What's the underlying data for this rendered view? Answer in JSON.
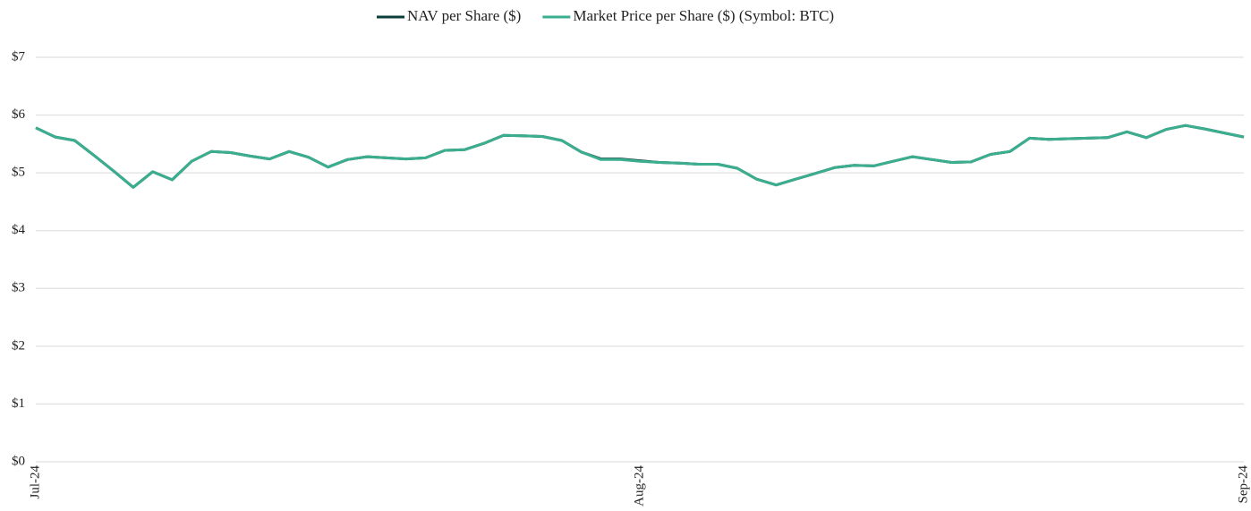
{
  "chart_data": {
    "type": "line",
    "categories": [
      "Jul-24",
      null,
      null,
      null,
      null,
      null,
      null,
      null,
      null,
      null,
      null,
      null,
      null,
      null,
      null,
      null,
      null,
      null,
      null,
      null,
      null,
      null,
      null,
      null,
      null,
      null,
      null,
      null,
      null,
      null,
      null,
      "Aug-24",
      null,
      null,
      null,
      null,
      null,
      null,
      null,
      null,
      null,
      null,
      null,
      null,
      null,
      null,
      null,
      null,
      null,
      null,
      null,
      null,
      null,
      null,
      null,
      null,
      null,
      null,
      null,
      null,
      null,
      null,
      "Sep-24"
    ],
    "series": [
      {
        "name": "NAV per Share ($)",
        "color": "#0b3d3a",
        "values": [
          5.78,
          5.62,
          5.56,
          5.3,
          5.03,
          4.75,
          5.02,
          4.88,
          5.2,
          5.37,
          5.35,
          5.29,
          5.24,
          5.37,
          5.27,
          5.1,
          5.23,
          5.28,
          5.26,
          5.24,
          5.26,
          5.39,
          5.4,
          5.51,
          5.65,
          5.64,
          5.63,
          5.56,
          5.36,
          5.24,
          5.24,
          5.21,
          5.18,
          5.17,
          5.15,
          5.15,
          5.08,
          4.89,
          4.79,
          4.89,
          4.99,
          5.09,
          5.13,
          5.12,
          5.2,
          5.28,
          5.23,
          5.18,
          5.19,
          5.32,
          5.37,
          5.6,
          5.58,
          5.59,
          5.6,
          5.61,
          5.71,
          5.61,
          5.75,
          5.82,
          5.76,
          5.69,
          5.62
        ]
      },
      {
        "name": "Market Price per Share ($) (Symbol: BTC)",
        "color": "#3aae8f",
        "values": [
          5.78,
          5.62,
          5.56,
          5.3,
          5.03,
          4.75,
          5.02,
          4.88,
          5.2,
          5.37,
          5.35,
          5.29,
          5.24,
          5.37,
          5.27,
          5.1,
          5.23,
          5.28,
          5.26,
          5.24,
          5.26,
          5.39,
          5.4,
          5.51,
          5.65,
          5.64,
          5.63,
          5.56,
          5.36,
          5.23,
          5.23,
          5.2,
          5.18,
          5.17,
          5.15,
          5.15,
          5.08,
          4.89,
          4.79,
          4.89,
          4.99,
          5.09,
          5.13,
          5.12,
          5.2,
          5.28,
          5.23,
          5.18,
          5.19,
          5.32,
          5.37,
          5.6,
          5.58,
          5.59,
          5.6,
          5.61,
          5.71,
          5.61,
          5.75,
          5.82,
          5.76,
          5.69,
          5.62
        ]
      }
    ],
    "ylim": [
      0,
      7
    ],
    "yticks": [
      {
        "value": 0,
        "label": "$0"
      },
      {
        "value": 1,
        "label": "$1"
      },
      {
        "value": 2,
        "label": "$2"
      },
      {
        "value": 3,
        "label": "$3"
      },
      {
        "value": 4,
        "label": "$4"
      },
      {
        "value": 5,
        "label": "$5"
      },
      {
        "value": 6,
        "label": "$6"
      },
      {
        "value": 7,
        "label": "$7"
      }
    ],
    "grid": true,
    "legend": "top"
  }
}
